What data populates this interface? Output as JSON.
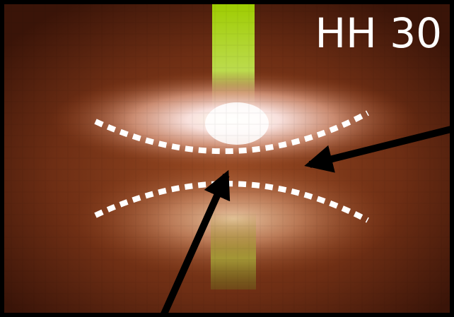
{
  "label": "HH 30"
}
